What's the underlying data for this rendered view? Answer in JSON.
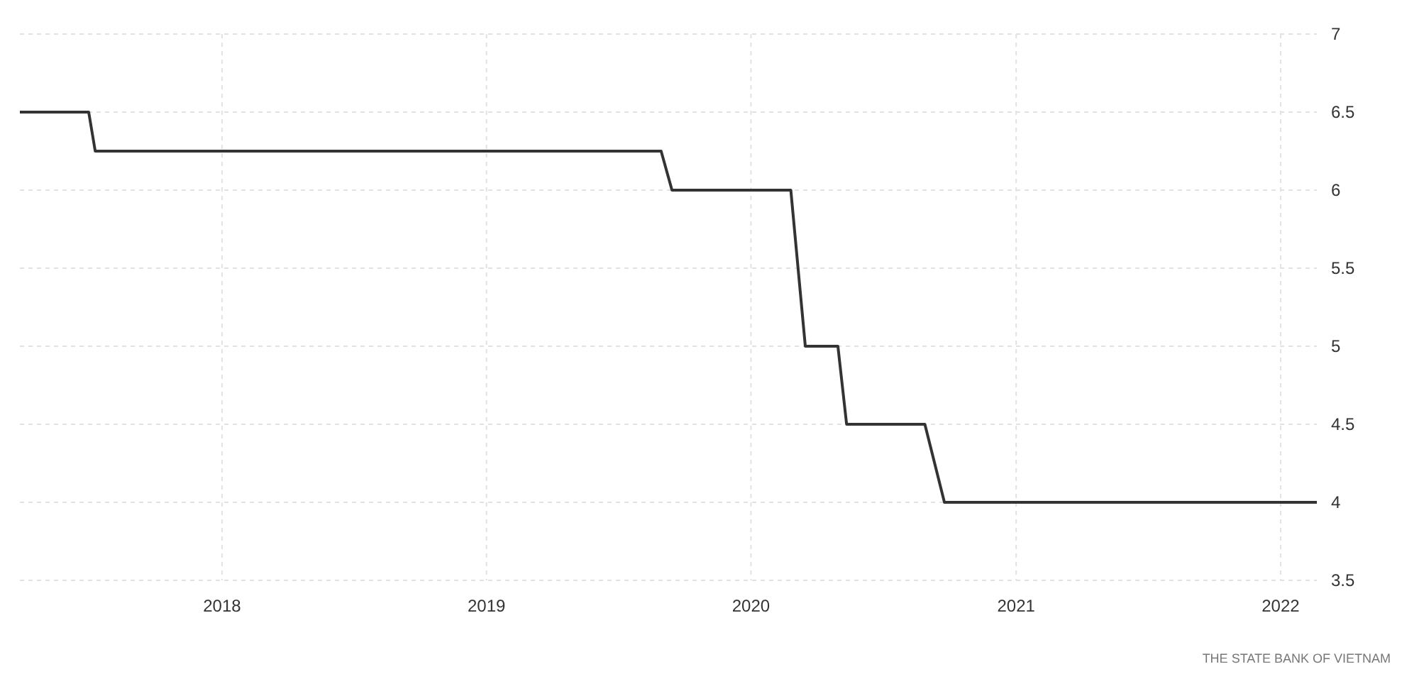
{
  "chart_data": {
    "type": "line",
    "x": [
      "2017-03-28",
      "2017-07-01",
      "2017-07-10",
      "2019-08-30",
      "2019-09-14",
      "2020-02-25",
      "2020-03-16",
      "2020-04-30",
      "2020-05-12",
      "2020-08-28",
      "2020-09-24",
      "2022-02-20"
    ],
    "series": [
      {
        "color": "#333333",
        "values": [
          6.5,
          6.5,
          6.25,
          6.25,
          6,
          6,
          5,
          5,
          4.5,
          4.5,
          4,
          4
        ]
      }
    ],
    "xlim": [
      "2017-03-28",
      "2022-02-20"
    ],
    "xticks": [
      "2018",
      "2019",
      "2020",
      "2021",
      "2022"
    ],
    "ylim": [
      3.5,
      7
    ],
    "yticks": [
      3.5,
      4,
      4.5,
      5,
      5.5,
      6,
      6.5,
      7
    ],
    "grid": true,
    "marker": "none",
    "line_style": "solid",
    "annotations": [
      "THE STATE BANK OF VIETNAM"
    ]
  }
}
